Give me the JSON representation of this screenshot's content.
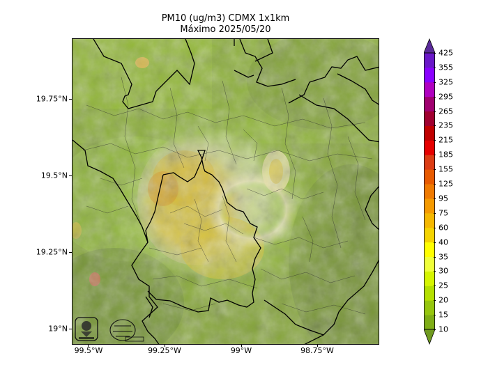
{
  "title": {
    "line1": "PM10 (ug/m3) CDMX 1x1km",
    "line2": "Máximo 2025/05/20"
  },
  "map": {
    "lon_range": [
      -99.58,
      -98.54
    ],
    "lat_range": [
      18.95,
      19.94
    ],
    "lat_ticks": [
      {
        "value": 19.75,
        "label": "19.75°N"
      },
      {
        "value": 19.5,
        "label": "19.5°N"
      },
      {
        "value": 19.25,
        "label": "19.25°N"
      },
      {
        "value": 19.0,
        "label": "19°N"
      }
    ],
    "lon_ticks": [
      {
        "value": -99.5,
        "label": "99.5°W"
      },
      {
        "value": -99.25,
        "label": "99.25°W"
      },
      {
        "value": -99.0,
        "label": "99°W"
      },
      {
        "value": -98.75,
        "label": "98.75°W"
      }
    ],
    "logos": [
      "sedema-logo",
      "monitoring-network-logo"
    ]
  },
  "colorbar": {
    "levels": [
      "10",
      "15",
      "20",
      "25",
      "30",
      "35",
      "40",
      "60",
      "75",
      "95",
      "125",
      "155",
      "185",
      "215",
      "235",
      "265",
      "295",
      "325",
      "355",
      "425"
    ],
    "colors": [
      "#6f9a1f",
      "#7fae16",
      "#96c60e",
      "#b5e000",
      "#d6f500",
      "#f0ff3a",
      "#ffff00",
      "#f5d400",
      "#f5b800",
      "#f59a00",
      "#f07a00",
      "#e85a00",
      "#dc3c14",
      "#e60000",
      "#c00000",
      "#a00030",
      "#a00070",
      "#b000c0",
      "#8a00ff",
      "#6a18c8"
    ],
    "extend_low_color": "#6f9a1f",
    "extend_high_color": "#5a2a9a"
  }
}
